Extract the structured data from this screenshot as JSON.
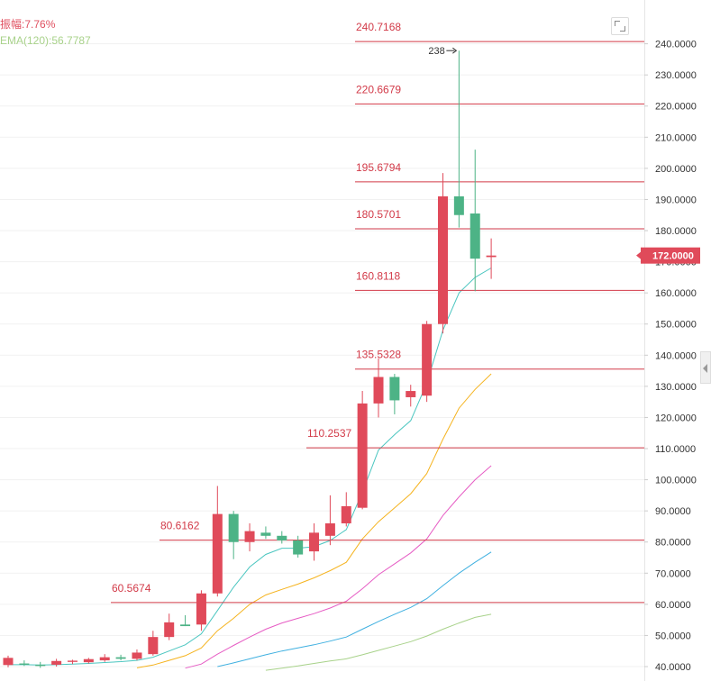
{
  "legend": {
    "amplitude": "振幅:7.76%",
    "ema120": "EMA(120):56.7787"
  },
  "colors": {
    "up": "#e04a5a",
    "down": "#4db386",
    "level": "#d23a48",
    "ema_cyan": "#4bc6c0",
    "ema_orange": "#f5b31e",
    "ema_magenta": "#e65cc4",
    "ema_blue": "#3fb0e0",
    "ema_green": "#a8d28a",
    "price_tag": "#e04a5a"
  },
  "chart_data": {
    "type": "candlestick",
    "ylim": [
      38.5,
      246
    ],
    "yticks": [
      "40.0000",
      "50.0000",
      "60.0000",
      "70.0000",
      "80.0000",
      "90.0000",
      "100.0000",
      "110.0000",
      "120.0000",
      "130.0000",
      "140.0000",
      "150.0000",
      "160.0000",
      "170.0000",
      "180.0000",
      "190.0000",
      "200.0000",
      "210.0000",
      "220.0000",
      "230.0000",
      "240.0000"
    ],
    "current_price": "172.0000",
    "current_value": 172.0,
    "peak_annotation": "238",
    "peak_value": 237.8,
    "levels": [
      {
        "label": "240.7168",
        "value": 240.7168
      },
      {
        "label": "220.6679",
        "value": 220.6679
      },
      {
        "label": "195.6794",
        "value": 195.6794
      },
      {
        "label": "180.5701",
        "value": 180.5701
      },
      {
        "label": "160.8118",
        "value": 160.8118
      },
      {
        "label": "135.5328",
        "value": 135.5328
      },
      {
        "label": "110.2537",
        "value": 110.2537
      },
      {
        "label": "80.6162",
        "value": 80.6162
      },
      {
        "label": "60.5674",
        "value": 60.5674
      }
    ],
    "candles": [
      {
        "o": 40.5,
        "h": 43.5,
        "l": 39.8,
        "c": 42.8
      },
      {
        "o": 41.0,
        "h": 42.0,
        "l": 40.2,
        "c": 40.6
      },
      {
        "o": 40.6,
        "h": 41.5,
        "l": 39.6,
        "c": 40.2
      },
      {
        "o": 40.6,
        "h": 42.5,
        "l": 40.0,
        "c": 41.8
      },
      {
        "o": 41.5,
        "h": 42.2,
        "l": 40.8,
        "c": 41.9
      },
      {
        "o": 41.4,
        "h": 42.8,
        "l": 41.0,
        "c": 42.4
      },
      {
        "o": 42.0,
        "h": 44.0,
        "l": 41.5,
        "c": 43.0
      },
      {
        "o": 43.0,
        "h": 43.8,
        "l": 42.0,
        "c": 42.5
      },
      {
        "o": 42.5,
        "h": 45.5,
        "l": 42.0,
        "c": 44.5
      },
      {
        "o": 44.0,
        "h": 51.5,
        "l": 43.5,
        "c": 49.5
      },
      {
        "o": 49.5,
        "h": 57.0,
        "l": 48.5,
        "c": 54.2
      },
      {
        "o": 53.5,
        "h": 56.5,
        "l": 53.0,
        "c": 53.0
      },
      {
        "o": 53.5,
        "h": 64.5,
        "l": 51.5,
        "c": 63.5
      },
      {
        "o": 63.5,
        "h": 98.0,
        "l": 62.5,
        "c": 89.0
      },
      {
        "o": 89.0,
        "h": 90.0,
        "l": 74.5,
        "c": 80.0
      },
      {
        "o": 80.0,
        "h": 86.0,
        "l": 77.0,
        "c": 83.5
      },
      {
        "o": 83.0,
        "h": 85.0,
        "l": 81.0,
        "c": 82.0
      },
      {
        "o": 82.0,
        "h": 83.5,
        "l": 79.5,
        "c": 80.5
      },
      {
        "o": 80.5,
        "h": 82.0,
        "l": 75.0,
        "c": 76.0
      },
      {
        "o": 77.0,
        "h": 86.0,
        "l": 74.0,
        "c": 83.0
      },
      {
        "o": 82.0,
        "h": 95.0,
        "l": 79.0,
        "c": 86.0
      },
      {
        "o": 86.0,
        "h": 96.0,
        "l": 85.0,
        "c": 91.5
      },
      {
        "o": 91.0,
        "h": 128.5,
        "l": 90.5,
        "c": 124.5
      },
      {
        "o": 124.5,
        "h": 139.0,
        "l": 120.0,
        "c": 133.0
      },
      {
        "o": 133.0,
        "h": 134.0,
        "l": 121.0,
        "c": 125.5
      },
      {
        "o": 126.5,
        "h": 130.5,
        "l": 123.5,
        "c": 128.5
      },
      {
        "o": 127.0,
        "h": 151.0,
        "l": 125.0,
        "c": 150.0
      },
      {
        "o": 150.0,
        "h": 198.5,
        "l": 147.0,
        "c": 191.0
      },
      {
        "o": 191.0,
        "h": 237.8,
        "l": 181.0,
        "c": 185.0
      },
      {
        "o": 185.5,
        "h": 206.0,
        "l": 160.5,
        "c": 171.0
      },
      {
        "o": 171.5,
        "h": 177.5,
        "l": 164.5,
        "c": 172.0
      }
    ],
    "ema_series": [
      {
        "color": "#4bc6c0",
        "values": [
          40.6,
          40.6,
          40.5,
          40.6,
          40.8,
          41.0,
          41.3,
          41.6,
          42.0,
          43.0,
          45.0,
          47.0,
          50.5,
          58.0,
          65.5,
          72.0,
          76.0,
          78.0,
          78.0,
          78.5,
          80.5,
          84.0,
          96.0,
          109.5,
          114.5,
          119.0,
          131.0,
          148.0,
          160.0,
          165.0,
          168.0
        ]
      },
      {
        "color": "#f5b31e",
        "values": [
          null,
          null,
          null,
          null,
          null,
          null,
          null,
          null,
          39.6,
          40.5,
          42.0,
          43.5,
          46.0,
          51.5,
          55.5,
          60.0,
          63.0,
          64.8,
          66.5,
          68.5,
          70.8,
          73.5,
          81.0,
          86.5,
          91.0,
          95.5,
          102.0,
          113.0,
          123.0,
          129.0,
          134.0
        ]
      },
      {
        "color": "#e65cc4",
        "values": [
          null,
          null,
          null,
          null,
          null,
          null,
          null,
          null,
          null,
          null,
          null,
          39.5,
          40.8,
          44.0,
          46.8,
          49.5,
          52.0,
          54.0,
          55.5,
          57.0,
          58.8,
          61.0,
          65.0,
          69.5,
          73.0,
          76.5,
          81.0,
          88.5,
          94.5,
          100.0,
          104.5
        ]
      },
      {
        "color": "#3fb0e0",
        "values": [
          null,
          null,
          null,
          null,
          null,
          null,
          null,
          null,
          null,
          null,
          null,
          null,
          null,
          40.0,
          41.2,
          42.5,
          43.8,
          45.0,
          46.0,
          47.0,
          48.2,
          49.5,
          52.0,
          54.5,
          56.8,
          59.0,
          61.8,
          66.0,
          70.0,
          73.5,
          76.8
        ]
      },
      {
        "color": "#a8d28a",
        "values": [
          null,
          null,
          null,
          null,
          null,
          null,
          null,
          null,
          null,
          null,
          null,
          null,
          null,
          null,
          null,
          null,
          38.8,
          39.5,
          40.2,
          41.0,
          41.8,
          42.5,
          43.8,
          45.2,
          46.6,
          48.0,
          49.8,
          52.0,
          54.0,
          55.8,
          56.8
        ]
      }
    ]
  }
}
